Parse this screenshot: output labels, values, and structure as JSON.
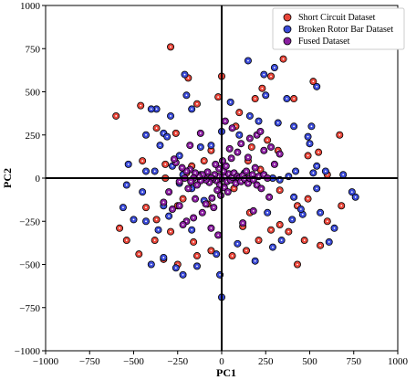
{
  "chart_data": {
    "type": "scatter",
    "xlabel": "PC1",
    "ylabel": "PC2",
    "xlim": [
      -1000,
      1000
    ],
    "ylim": [
      -1000,
      1000
    ],
    "xticks": [
      -1000,
      -750,
      -500,
      -250,
      0,
      250,
      500,
      750,
      1000
    ],
    "yticks": [
      -1000,
      -750,
      -500,
      -250,
      0,
      250,
      500,
      750,
      1000
    ],
    "xtick_labels": [
      "−1000",
      "−750",
      "−500",
      "−250",
      "0",
      "250",
      "500",
      "750",
      "1000"
    ],
    "ytick_labels": [
      "−1000",
      "−750",
      "−500",
      "−250",
      "0",
      "250",
      "500",
      "750",
      "1000"
    ],
    "grid": false,
    "zero_lines": true,
    "legend_position": "top-right",
    "marker_edge_color": "#000000",
    "series": [
      {
        "name": "Short Circuit Dataset",
        "color": "#e8463a",
        "points": [
          [
            -600,
            360
          ],
          [
            -290,
            760
          ],
          [
            -460,
            420
          ],
          [
            -370,
            290
          ],
          [
            -260,
            260
          ],
          [
            -190,
            580
          ],
          [
            -140,
            430
          ],
          [
            -450,
            100
          ],
          [
            -320,
            80
          ],
          [
            -580,
            -290
          ],
          [
            -540,
            -360
          ],
          [
            -430,
            -170
          ],
          [
            -370,
            -240
          ],
          [
            -290,
            -310
          ],
          [
            -160,
            -370
          ],
          [
            -470,
            -440
          ],
          [
            -330,
            -470
          ],
          [
            -250,
            -500
          ],
          [
            -140,
            -450
          ],
          [
            -60,
            -420
          ],
          [
            60,
            -450
          ],
          [
            140,
            -420
          ],
          [
            210,
            -360
          ],
          [
            280,
            -300
          ],
          [
            330,
            -270
          ],
          [
            160,
            -200
          ],
          [
            380,
            -310
          ],
          [
            430,
            -500
          ],
          [
            470,
            -360
          ],
          [
            560,
            -390
          ],
          [
            600,
            -250
          ],
          [
            680,
            -160
          ],
          [
            670,
            250
          ],
          [
            550,
            150
          ],
          [
            490,
            130
          ],
          [
            320,
            160
          ],
          [
            260,
            220
          ],
          [
            170,
            180
          ],
          [
            80,
            300
          ],
          [
            150,
            100
          ],
          [
            520,
            560
          ],
          [
            350,
            690
          ],
          [
            280,
            590
          ],
          [
            230,
            520
          ],
          [
            410,
            460
          ],
          [
            190,
            460
          ],
          [
            -20,
            470
          ],
          [
            -100,
            100
          ],
          [
            -320,
            0
          ],
          [
            -170,
            70
          ],
          [
            -80,
            -150
          ],
          [
            -220,
            -120
          ],
          [
            -380,
            -360
          ],
          [
            -250,
            -160
          ],
          [
            120,
            -280
          ],
          [
            330,
            -70
          ],
          [
            490,
            -120
          ],
          [
            430,
            -160
          ],
          [
            600,
            20
          ],
          [
            -200,
            30
          ],
          [
            70,
            -60
          ],
          [
            220,
            50
          ],
          [
            -60,
            160
          ],
          [
            0,
            590
          ],
          [
            100,
            380
          ]
        ]
      },
      {
        "name": "Broken Rotor Bar Dataset",
        "color": "#3b4bd8",
        "points": [
          [
            150,
            680
          ],
          [
            240,
            600
          ],
          [
            300,
            640
          ],
          [
            540,
            530
          ],
          [
            370,
            460
          ],
          [
            320,
            320
          ],
          [
            410,
            300
          ],
          [
            490,
            240
          ],
          [
            510,
            300
          ],
          [
            500,
            200
          ],
          [
            -210,
            600
          ],
          [
            -200,
            480
          ],
          [
            -170,
            400
          ],
          [
            -290,
            360
          ],
          [
            -370,
            400
          ],
          [
            -400,
            400
          ],
          [
            -330,
            260
          ],
          [
            -310,
            240
          ],
          [
            -450,
            -80
          ],
          [
            -530,
            80
          ],
          [
            -540,
            -40
          ],
          [
            -430,
            40
          ],
          [
            -380,
            40
          ],
          [
            -500,
            -240
          ],
          [
            -560,
            -170
          ],
          [
            -430,
            -250
          ],
          [
            -330,
            -160
          ],
          [
            -300,
            -220
          ],
          [
            -360,
            -300
          ],
          [
            -330,
            -460
          ],
          [
            -260,
            -520
          ],
          [
            -400,
            -500
          ],
          [
            -220,
            -560
          ],
          [
            -140,
            -510
          ],
          [
            -170,
            -300
          ],
          [
            0,
            -690
          ],
          [
            -10,
            -560
          ],
          [
            -30,
            -440
          ],
          [
            90,
            -380
          ],
          [
            190,
            -480
          ],
          [
            290,
            -400
          ],
          [
            340,
            -360
          ],
          [
            400,
            -240
          ],
          [
            410,
            -110
          ],
          [
            460,
            -210
          ],
          [
            540,
            -60
          ],
          [
            560,
            -200
          ],
          [
            640,
            -290
          ],
          [
            610,
            -370
          ],
          [
            740,
            -80
          ],
          [
            760,
            -110
          ],
          [
            690,
            20
          ],
          [
            590,
            40
          ],
          [
            540,
            70
          ],
          [
            520,
            30
          ],
          [
            420,
            40
          ],
          [
            380,
            10
          ],
          [
            290,
            0
          ],
          [
            130,
            30
          ],
          [
            80,
            -20
          ],
          [
            -120,
            20
          ],
          [
            -220,
            20
          ],
          [
            -240,
            130
          ],
          [
            -240,
            -30
          ],
          [
            -170,
            -60
          ],
          [
            -100,
            -130
          ],
          [
            -60,
            190
          ],
          [
            -120,
            180
          ],
          [
            0,
            270
          ],
          [
            50,
            440
          ],
          [
            250,
            480
          ],
          [
            160,
            360
          ],
          [
            210,
            330
          ],
          [
            100,
            250
          ],
          [
            -280,
            70
          ],
          [
            -430,
            250
          ],
          [
            -350,
            190
          ],
          [
            330,
            -10
          ],
          [
            450,
            -180
          ],
          [
            260,
            -200
          ]
        ]
      },
      {
        "name": "Fused Dataset",
        "color": "#8a1fa0",
        "points": [
          [
            0,
            0
          ],
          [
            20,
            10
          ],
          [
            -20,
            10
          ],
          [
            30,
            -20
          ],
          [
            -30,
            -15
          ],
          [
            40,
            25
          ],
          [
            -40,
            20
          ],
          [
            50,
            -10
          ],
          [
            -50,
            -5
          ],
          [
            10,
            40
          ],
          [
            -10,
            -40
          ],
          [
            60,
            5
          ],
          [
            -60,
            0
          ],
          [
            70,
            30
          ],
          [
            -70,
            -25
          ],
          [
            80,
            -30
          ],
          [
            -80,
            35
          ],
          [
            90,
            10
          ],
          [
            -90,
            -10
          ],
          [
            100,
            0
          ],
          [
            -100,
            5
          ],
          [
            15,
            -55
          ],
          [
            -15,
            55
          ],
          [
            110,
            -20
          ],
          [
            -110,
            20
          ],
          [
            25,
            70
          ],
          [
            -25,
            -70
          ],
          [
            120,
            15
          ],
          [
            -120,
            -15
          ],
          [
            35,
            -80
          ],
          [
            -35,
            80
          ],
          [
            130,
            -5
          ],
          [
            -130,
            10
          ],
          [
            140,
            40
          ],
          [
            -140,
            -40
          ],
          [
            5,
            100
          ],
          [
            -5,
            -100
          ],
          [
            150,
            -30
          ],
          [
            -150,
            30
          ],
          [
            160,
            0
          ],
          [
            -160,
            0
          ],
          [
            55,
            115
          ],
          [
            -55,
            -115
          ],
          [
            175,
            20
          ],
          [
            -175,
            -20
          ],
          [
            180,
            -10
          ],
          [
            -180,
            50
          ],
          [
            190,
            60
          ],
          [
            -190,
            -60
          ],
          [
            200,
            -40
          ],
          [
            -200,
            40
          ],
          [
            210,
            10
          ],
          [
            -210,
            0
          ],
          [
            225,
            -60
          ],
          [
            -225,
            60
          ],
          [
            240,
            20
          ],
          [
            -240,
            -20
          ],
          [
            260,
            0
          ],
          [
            -260,
            90
          ],
          [
            270,
            -110
          ],
          [
            -270,
            110
          ],
          [
            110,
            200
          ],
          [
            -110,
            -200
          ],
          [
            160,
            230
          ],
          [
            -160,
            -230
          ],
          [
            200,
            250
          ],
          [
            -200,
            -250
          ],
          [
            240,
            160
          ],
          [
            -240,
            -160
          ],
          [
            280,
            180
          ],
          [
            -280,
            -180
          ],
          [
            60,
            290
          ],
          [
            -60,
            -290
          ],
          [
            120,
            -260
          ],
          [
            -120,
            260
          ],
          [
            180,
            -190
          ],
          [
            -180,
            190
          ],
          [
            220,
            270
          ],
          [
            -220,
            -270
          ],
          [
            20,
            330
          ],
          [
            -20,
            -330
          ],
          [
            300,
            80
          ],
          [
            -300,
            -80
          ],
          [
            330,
            140
          ],
          [
            -330,
            -140
          ],
          [
            90,
            150
          ],
          [
            -90,
            -150
          ],
          [
            150,
            120
          ],
          [
            -150,
            -120
          ],
          [
            45,
            170
          ],
          [
            -45,
            -170
          ]
        ]
      }
    ]
  }
}
